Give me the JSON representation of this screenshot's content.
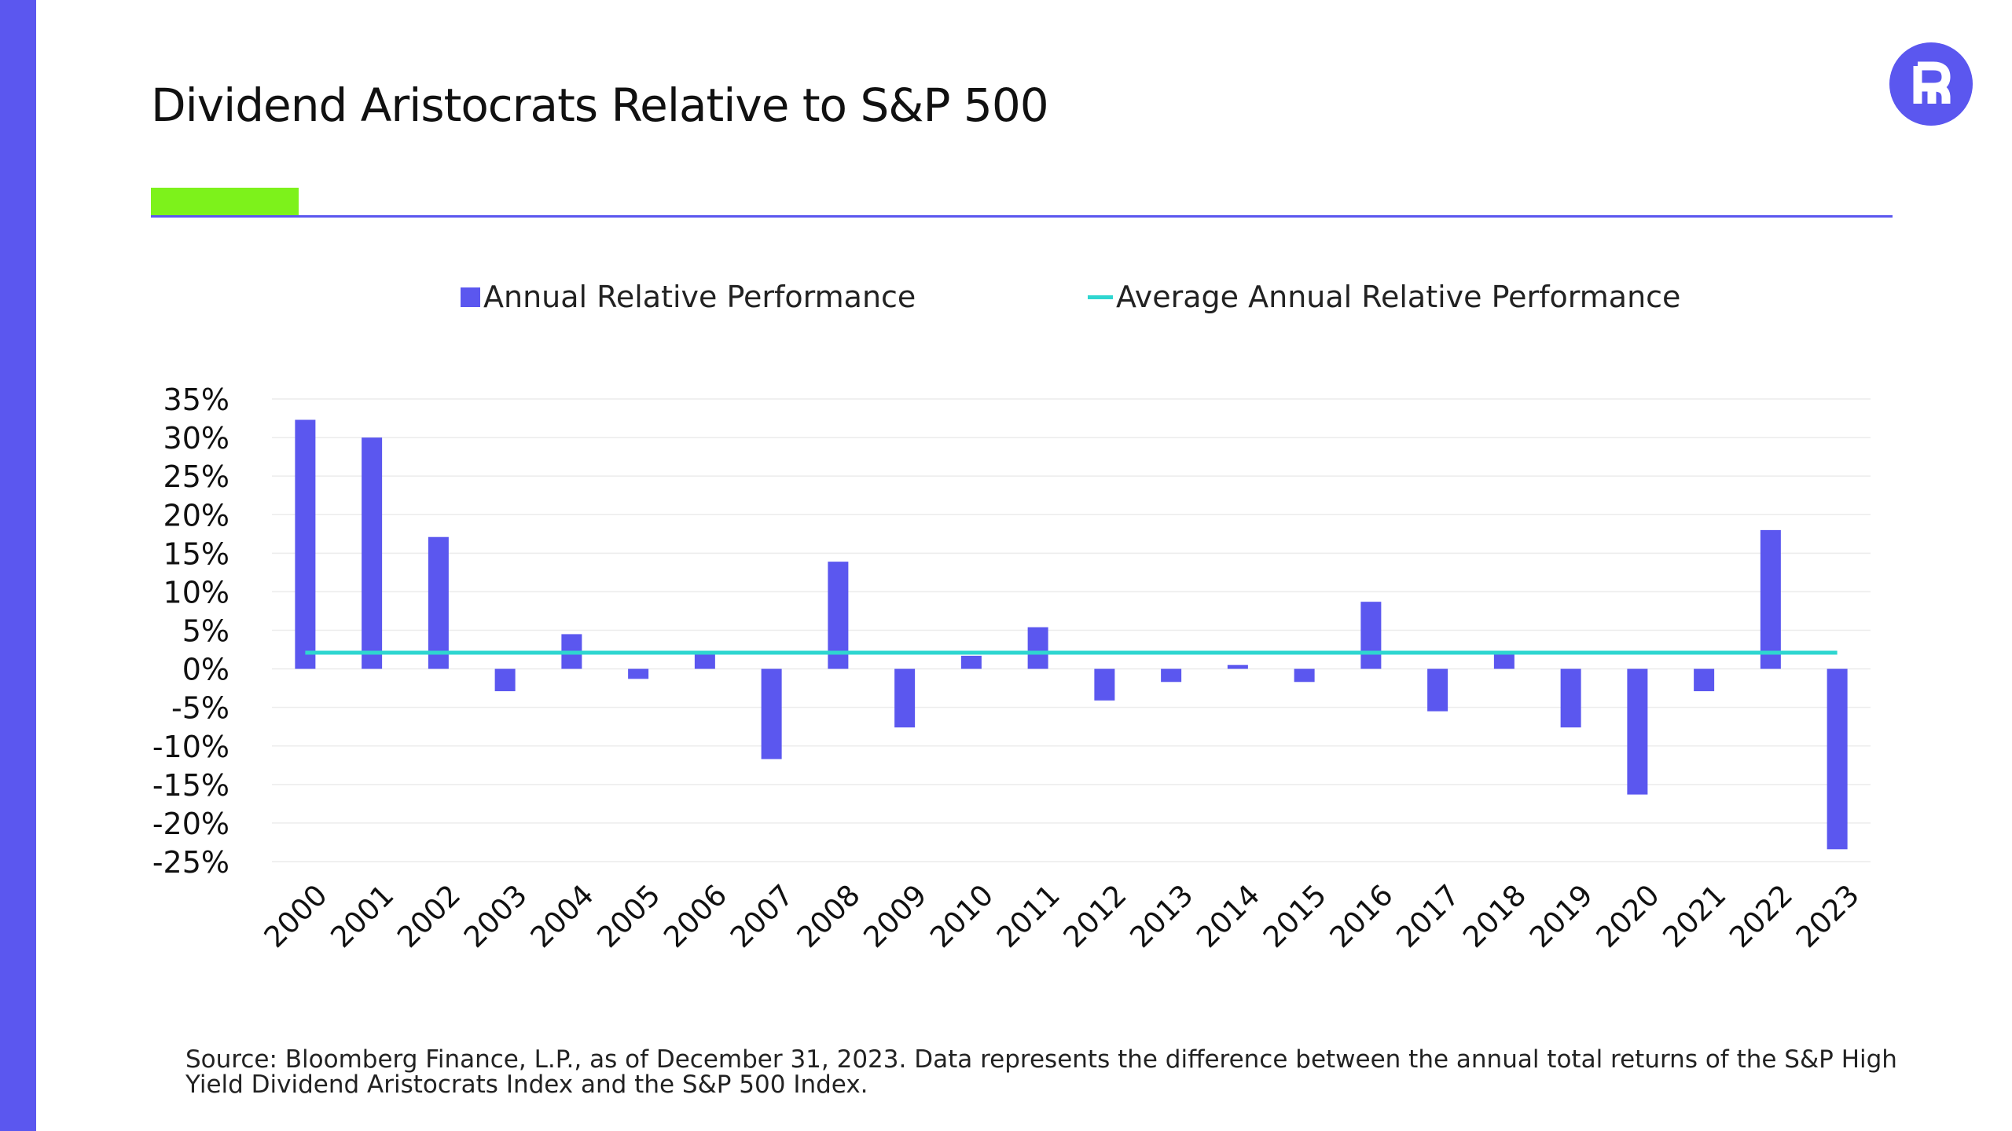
{
  "title": "Dividend Aristocrats Relative to S&P 500",
  "logo": {
    "icon": "r-logo-icon",
    "color": "#5b57ef"
  },
  "colors": {
    "accent": "#5b57ef",
    "highlight": "#7df21b",
    "bar": "#5b57ef",
    "average_line": "#2ed6d0"
  },
  "legend": {
    "bar_label": "Annual Relative Performance",
    "line_label": "Average Annual Relative Performance"
  },
  "chart_data": {
    "type": "bar",
    "title": "",
    "xlabel": "",
    "ylabel": "",
    "categories": [
      "2000",
      "2001",
      "2002",
      "2003",
      "2004",
      "2005",
      "2006",
      "2007",
      "2008",
      "2009",
      "2010",
      "2011",
      "2012",
      "2013",
      "2014",
      "2015",
      "2016",
      "2017",
      "2018",
      "2019",
      "2020",
      "2021",
      "2022",
      "2023"
    ],
    "series": [
      {
        "name": "Annual Relative Performance",
        "type": "bar",
        "values": [
          32.3,
          30.0,
          17.1,
          -2.9,
          4.5,
          -1.3,
          2.1,
          -11.7,
          13.9,
          -7.6,
          1.7,
          5.4,
          -4.1,
          -1.7,
          0.5,
          -1.7,
          8.7,
          -5.5,
          2.0,
          -7.6,
          -16.3,
          -2.9,
          18.0,
          -23.4
        ]
      },
      {
        "name": "Average Annual Relative Performance",
        "type": "line",
        "values": [
          2.1,
          2.1,
          2.1,
          2.1,
          2.1,
          2.1,
          2.1,
          2.1,
          2.1,
          2.1,
          2.1,
          2.1,
          2.1,
          2.1,
          2.1,
          2.1,
          2.1,
          2.1,
          2.1,
          2.1,
          2.1,
          2.1,
          2.1,
          2.1
        ]
      }
    ],
    "ylim": [
      -25,
      35
    ],
    "yticks": [
      35,
      30,
      25,
      20,
      15,
      10,
      5,
      0,
      -5,
      -10,
      -15,
      -20,
      -25
    ],
    "ytick_labels": [
      "35%",
      "30%",
      "25%",
      "20%",
      "15%",
      "10%",
      "5%",
      "0%",
      "-5%",
      "-10%",
      "-15%",
      "-20%",
      "-25%"
    ],
    "grid": true,
    "legend_position": "top"
  },
  "footnote": "Source: Bloomberg Finance, L.P., as of December 31, 2023. Data represents the difference between the annual total returns of the S&P High Yield Dividend Aristocrats Index and the S&P 500 Index."
}
